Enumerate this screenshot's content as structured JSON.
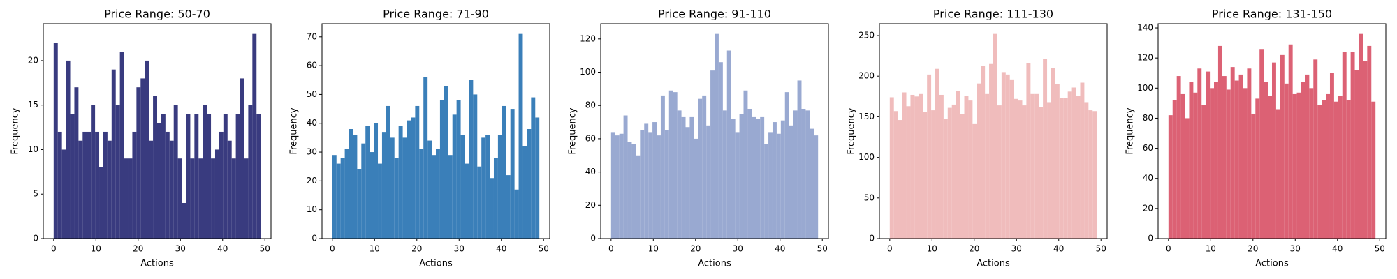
{
  "chart_data": [
    {
      "type": "histogram",
      "title": "Price Range: 50-70",
      "xlabel": "Actions",
      "ylabel": "Frequency",
      "color": "#393b7f",
      "bins": [
        0,
        0.98,
        1.96,
        2.94,
        3.92,
        4.9,
        5.88,
        6.86,
        7.84,
        8.82,
        9.8,
        10.78,
        11.76,
        12.74,
        13.72,
        14.7,
        15.68,
        16.66,
        17.64,
        18.62,
        19.6,
        20.58,
        21.56,
        22.54,
        23.52,
        24.5,
        25.48,
        26.46,
        27.44,
        28.42,
        29.4,
        30.38,
        31.36,
        32.34,
        33.32,
        34.3,
        35.28,
        36.26,
        37.24,
        38.22,
        39.2,
        40.18,
        41.16,
        42.14,
        43.12,
        44.1,
        45.08,
        46.06,
        47.04,
        48.02,
        49
      ],
      "values": [
        22,
        12,
        10,
        20,
        14,
        17,
        11,
        12,
        12,
        15,
        12,
        8,
        12,
        11,
        19,
        15,
        21,
        9,
        9,
        12,
        17,
        18,
        20,
        11,
        16,
        13,
        14,
        12,
        11,
        15,
        9,
        4,
        14,
        9,
        14,
        9,
        15,
        14,
        9,
        10,
        12,
        14,
        11,
        9,
        14,
        18,
        9,
        15,
        23,
        14
      ],
      "xlim": [
        -2.45,
        51.45
      ],
      "xticks": [
        0,
        10,
        20,
        30,
        40,
        50
      ],
      "ylim": [
        0,
        24.15
      ],
      "yticks": [
        0,
        5,
        10,
        15,
        20
      ]
    },
    {
      "type": "histogram",
      "title": "Price Range: 71-90",
      "xlabel": "Actions",
      "ylabel": "Frequency",
      "color": "#3a7fb9",
      "bins": [
        0,
        0.98,
        1.96,
        2.94,
        3.92,
        4.9,
        5.88,
        6.86,
        7.84,
        8.82,
        9.8,
        10.78,
        11.76,
        12.74,
        13.72,
        14.7,
        15.68,
        16.66,
        17.64,
        18.62,
        19.6,
        20.58,
        21.56,
        22.54,
        23.52,
        24.5,
        25.48,
        26.46,
        27.44,
        28.42,
        29.4,
        30.38,
        31.36,
        32.34,
        33.32,
        34.3,
        35.28,
        36.26,
        37.24,
        38.22,
        39.2,
        40.18,
        41.16,
        42.14,
        43.12,
        44.1,
        45.08,
        46.06,
        47.04,
        48.02,
        49
      ],
      "values": [
        29,
        26,
        28,
        31,
        38,
        36,
        24,
        33,
        39,
        30,
        40,
        26,
        37,
        46,
        35,
        28,
        39,
        35,
        41,
        42,
        46,
        31,
        56,
        34,
        29,
        31,
        48,
        53,
        29,
        43,
        48,
        36,
        26,
        55,
        50,
        25,
        35,
        36,
        21,
        28,
        36,
        46,
        22,
        45,
        17,
        71,
        32,
        38,
        49,
        42
      ],
      "xlim": [
        -2.45,
        51.45
      ],
      "xticks": [
        0,
        10,
        20,
        30,
        40,
        50
      ],
      "ylim": [
        0,
        74.55
      ],
      "yticks": [
        0,
        10,
        20,
        30,
        40,
        50,
        60,
        70
      ]
    },
    {
      "type": "histogram",
      "title": "Price Range: 91-110",
      "xlabel": "Actions",
      "ylabel": "Frequency",
      "color": "#99a9d1",
      "bins": [
        0,
        0.98,
        1.96,
        2.94,
        3.92,
        4.9,
        5.88,
        6.86,
        7.84,
        8.82,
        9.8,
        10.78,
        11.76,
        12.74,
        13.72,
        14.7,
        15.68,
        16.66,
        17.64,
        18.62,
        19.6,
        20.58,
        21.56,
        22.54,
        23.52,
        24.5,
        25.48,
        26.46,
        27.44,
        28.42,
        29.4,
        30.38,
        31.36,
        32.34,
        33.32,
        34.3,
        35.28,
        36.26,
        37.24,
        38.22,
        39.2,
        40.18,
        41.16,
        42.14,
        43.12,
        44.1,
        45.08,
        46.06,
        47.04,
        48.02,
        49
      ],
      "values": [
        64,
        62,
        63,
        74,
        58,
        57,
        50,
        65,
        69,
        64,
        70,
        62,
        86,
        65,
        89,
        88,
        77,
        73,
        67,
        73,
        60,
        84,
        86,
        68,
        101,
        123,
        106,
        77,
        113,
        72,
        64,
        75,
        89,
        78,
        73,
        72,
        73,
        57,
        64,
        70,
        63,
        71,
        88,
        68,
        77,
        95,
        78,
        77,
        66,
        62
      ],
      "xlim": [
        -2.45,
        51.45
      ],
      "xticks": [
        0,
        10,
        20,
        30,
        40,
        50
      ],
      "ylim": [
        0,
        129.15
      ],
      "yticks": [
        0,
        20,
        40,
        60,
        80,
        100,
        120
      ]
    },
    {
      "type": "histogram",
      "title": "Price Range: 111-130",
      "xlabel": "Actions",
      "ylabel": "Frequency",
      "color": "#f0bcbc",
      "bins": [
        0,
        0.98,
        1.96,
        2.94,
        3.92,
        4.9,
        5.88,
        6.86,
        7.84,
        8.82,
        9.8,
        10.78,
        11.76,
        12.74,
        13.72,
        14.7,
        15.68,
        16.66,
        17.64,
        18.62,
        19.6,
        20.58,
        21.56,
        22.54,
        23.52,
        24.5,
        25.48,
        26.46,
        27.44,
        28.42,
        29.4,
        30.38,
        31.36,
        32.34,
        33.32,
        34.3,
        35.28,
        36.26,
        37.24,
        38.22,
        39.2,
        40.18,
        41.16,
        42.14,
        43.12,
        44.1,
        45.08,
        46.06,
        47.04,
        48.02,
        49
      ],
      "values": [
        174,
        157,
        146,
        180,
        163,
        177,
        175,
        178,
        156,
        202,
        158,
        209,
        177,
        147,
        161,
        165,
        182,
        153,
        176,
        170,
        141,
        191,
        213,
        178,
        215,
        252,
        164,
        205,
        202,
        196,
        172,
        170,
        164,
        216,
        178,
        178,
        162,
        221,
        168,
        210,
        190,
        173,
        173,
        181,
        186,
        176,
        192,
        168,
        158,
        157
      ],
      "xlim": [
        -2.45,
        51.45
      ],
      "xticks": [
        0,
        10,
        20,
        30,
        40,
        50
      ],
      "ylim": [
        0,
        264.6
      ],
      "yticks": [
        0,
        50,
        100,
        150,
        200,
        250
      ]
    },
    {
      "type": "histogram",
      "title": "Price Range: 131-150",
      "xlabel": "Actions",
      "ylabel": "Frequency",
      "color": "#dc6174",
      "bins": [
        0,
        0.98,
        1.96,
        2.94,
        3.92,
        4.9,
        5.88,
        6.86,
        7.84,
        8.82,
        9.8,
        10.78,
        11.76,
        12.74,
        13.72,
        14.7,
        15.68,
        16.66,
        17.64,
        18.62,
        19.6,
        20.58,
        21.56,
        22.54,
        23.52,
        24.5,
        25.48,
        26.46,
        27.44,
        28.42,
        29.4,
        30.38,
        31.36,
        32.34,
        33.32,
        34.3,
        35.28,
        36.26,
        37.24,
        38.22,
        39.2,
        40.18,
        41.16,
        42.14,
        43.12,
        44.1,
        45.08,
        46.06,
        47.04,
        48.02,
        49
      ],
      "values": [
        82,
        92,
        108,
        96,
        80,
        104,
        97,
        113,
        89,
        111,
        100,
        104,
        128,
        108,
        99,
        114,
        105,
        109,
        100,
        113,
        83,
        93,
        126,
        104,
        95,
        117,
        86,
        122,
        103,
        129,
        96,
        97,
        104,
        109,
        100,
        119,
        89,
        92,
        96,
        110,
        91,
        95,
        124,
        92,
        124,
        112,
        136,
        118,
        128,
        91
      ],
      "xlim": [
        -2.45,
        51.45
      ],
      "xticks": [
        0,
        10,
        20,
        30,
        40,
        50
      ],
      "ylim": [
        0,
        142.8
      ],
      "yticks": [
        0,
        20,
        40,
        60,
        80,
        100,
        120,
        140
      ]
    }
  ]
}
